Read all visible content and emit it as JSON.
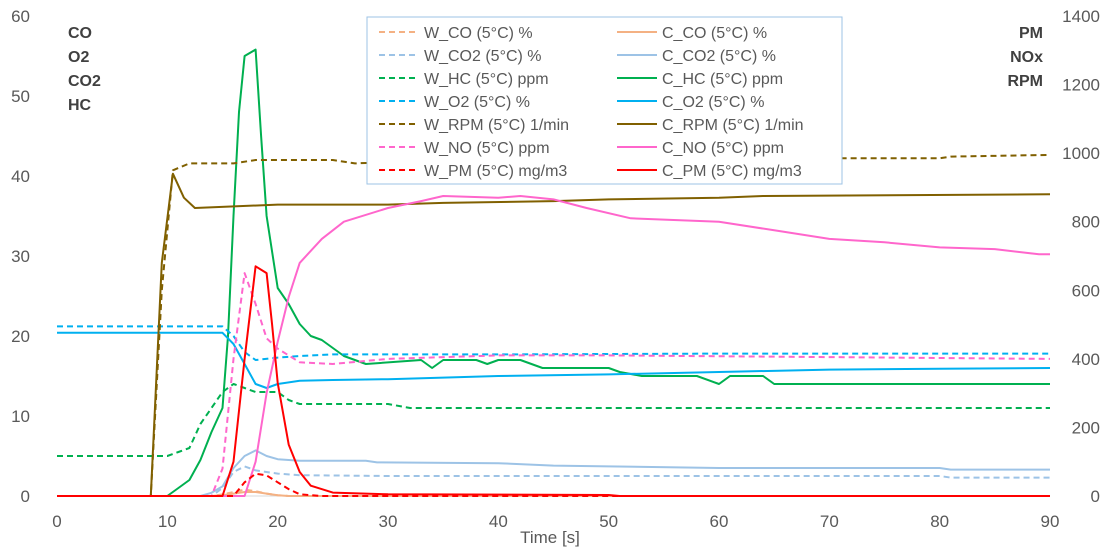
{
  "chart_data": {
    "type": "line",
    "xlabel": "Time [s]",
    "xlim": [
      0,
      90
    ],
    "xticks": [
      0,
      10,
      20,
      30,
      40,
      50,
      60,
      70,
      80,
      90
    ],
    "y_left": {
      "ylim": [
        0,
        60
      ],
      "ticks": [
        0,
        10,
        20,
        30,
        40,
        50,
        60
      ],
      "labels": [
        "CO",
        "O2",
        "CO2",
        "HC"
      ]
    },
    "y_right": {
      "ylim": [
        0,
        1400
      ],
      "ticks": [
        0,
        200,
        400,
        600,
        800,
        1000,
        1200,
        1400
      ],
      "labels": [
        "PM",
        "NOx",
        "RPM"
      ]
    },
    "grid": false,
    "legend": "top-center",
    "series": [
      {
        "name": "W_CO (5°C) %",
        "color": "#F4B183",
        "dash": true,
        "axis": "left",
        "points": [
          [
            0,
            0
          ],
          [
            14,
            0
          ],
          [
            15,
            0.2
          ],
          [
            16,
            0.5
          ],
          [
            17,
            0.8
          ],
          [
            18,
            0.6
          ],
          [
            19,
            0.3
          ],
          [
            20,
            0.1
          ],
          [
            21,
            0
          ],
          [
            90,
            0
          ]
        ]
      },
      {
        "name": "C_CO (5°C) %",
        "color": "#F4B183",
        "dash": false,
        "axis": "left",
        "points": [
          [
            0,
            0
          ],
          [
            14,
            0
          ],
          [
            15,
            0.1
          ],
          [
            16,
            0.3
          ],
          [
            17,
            0.5
          ],
          [
            18,
            0.5
          ],
          [
            19,
            0.3
          ],
          [
            20,
            0.1
          ],
          [
            21,
            0
          ],
          [
            90,
            0
          ]
        ]
      },
      {
        "name": "W_CO2 (5°C) %",
        "color": "#9DC3E6",
        "dash": true,
        "axis": "left",
        "points": [
          [
            0,
            0
          ],
          [
            14,
            0
          ],
          [
            15,
            1
          ],
          [
            16,
            3
          ],
          [
            17,
            3.7
          ],
          [
            18,
            3.2
          ],
          [
            20,
            2.8
          ],
          [
            22,
            2.6
          ],
          [
            30,
            2.5
          ],
          [
            80,
            2.5
          ],
          [
            81,
            2.3
          ],
          [
            90,
            2.3
          ]
        ]
      },
      {
        "name": "C_CO2 (5°C) %",
        "color": "#9DC3E6",
        "dash": false,
        "axis": "left",
        "points": [
          [
            0,
            0
          ],
          [
            13,
            0
          ],
          [
            14,
            0.4
          ],
          [
            15,
            1.2
          ],
          [
            16,
            3.5
          ],
          [
            17,
            5
          ],
          [
            18,
            5.7
          ],
          [
            19,
            5
          ],
          [
            20,
            4.6
          ],
          [
            22,
            4.4
          ],
          [
            28,
            4.4
          ],
          [
            29,
            4.2
          ],
          [
            40,
            4.1
          ],
          [
            45,
            3.8
          ],
          [
            60,
            3.5
          ],
          [
            80,
            3.5
          ],
          [
            81,
            3.3
          ],
          [
            90,
            3.3
          ]
        ]
      },
      {
        "name": "W_HC (5°C) ppm",
        "color": "#00B050",
        "dash": true,
        "axis": "left",
        "points": [
          [
            0,
            5
          ],
          [
            10,
            5
          ],
          [
            11,
            5.5
          ],
          [
            12,
            6
          ],
          [
            13,
            9
          ],
          [
            14,
            11
          ],
          [
            15,
            13
          ],
          [
            16,
            14
          ],
          [
            17,
            13.5
          ],
          [
            18,
            13
          ],
          [
            20,
            13
          ],
          [
            21,
            12
          ],
          [
            22,
            11.5
          ],
          [
            30,
            11.5
          ],
          [
            32,
            11
          ],
          [
            90,
            11
          ]
        ]
      },
      {
        "name": "C_HC (5°C) ppm",
        "color": "#00B050",
        "dash": false,
        "axis": "left",
        "points": [
          [
            0,
            0
          ],
          [
            10,
            0
          ],
          [
            11,
            1
          ],
          [
            12,
            2
          ],
          [
            13,
            4.5
          ],
          [
            14,
            8
          ],
          [
            15,
            11
          ],
          [
            15.5,
            20
          ],
          [
            16,
            35
          ],
          [
            16.5,
            48
          ],
          [
            17,
            55
          ],
          [
            18,
            55.8
          ],
          [
            18.5,
            45
          ],
          [
            19,
            35
          ],
          [
            20,
            26
          ],
          [
            21,
            24
          ],
          [
            22,
            21.5
          ],
          [
            23,
            20
          ],
          [
            24,
            19.5
          ],
          [
            26,
            17.5
          ],
          [
            28,
            16.5
          ],
          [
            33,
            17
          ],
          [
            34,
            16
          ],
          [
            35,
            17
          ],
          [
            38,
            17
          ],
          [
            39,
            16.5
          ],
          [
            40,
            17
          ],
          [
            42,
            17
          ],
          [
            44,
            16
          ],
          [
            50,
            16
          ],
          [
            51,
            15.5
          ],
          [
            53,
            15
          ],
          [
            58,
            15
          ],
          [
            60,
            14
          ],
          [
            61,
            15
          ],
          [
            64,
            15
          ],
          [
            65,
            14
          ],
          [
            90,
            14
          ]
        ]
      },
      {
        "name": "W_O2 (5°C) %",
        "color": "#00B0F0",
        "dash": true,
        "axis": "left",
        "points": [
          [
            0,
            21.2
          ],
          [
            15,
            21.2
          ],
          [
            16,
            20
          ],
          [
            17,
            18
          ],
          [
            18,
            17
          ],
          [
            20,
            17.3
          ],
          [
            22,
            17.5
          ],
          [
            25,
            17.7
          ],
          [
            40,
            17.7
          ],
          [
            60,
            17.8
          ],
          [
            90,
            17.8
          ]
        ]
      },
      {
        "name": "C_O2 (5°C) %",
        "color": "#00B0F0",
        "dash": false,
        "axis": "left",
        "points": [
          [
            0,
            20.4
          ],
          [
            15,
            20.4
          ],
          [
            16,
            19
          ],
          [
            17,
            16.5
          ],
          [
            18,
            14
          ],
          [
            19,
            13.5
          ],
          [
            20,
            14
          ],
          [
            22,
            14.4
          ],
          [
            25,
            14.5
          ],
          [
            30,
            14.6
          ],
          [
            40,
            15
          ],
          [
            50,
            15.2
          ],
          [
            60,
            15.5
          ],
          [
            70,
            15.8
          ],
          [
            80,
            15.9
          ],
          [
            90,
            16
          ]
        ]
      },
      {
        "name": "W_RPM (5°C) 1/min",
        "color": "#806000",
        "dash": true,
        "axis": "right",
        "points": [
          [
            0,
            0
          ],
          [
            8.5,
            0
          ],
          [
            9.5,
            600
          ],
          [
            10.5,
            950
          ],
          [
            12,
            970
          ],
          [
            16,
            970
          ],
          [
            18,
            980
          ],
          [
            25,
            980
          ],
          [
            27,
            970
          ],
          [
            35,
            980
          ],
          [
            70,
            985
          ],
          [
            80,
            985
          ],
          [
            81,
            990
          ],
          [
            90,
            995
          ]
        ]
      },
      {
        "name": "C_RPM (5°C) 1/min",
        "color": "#806000",
        "dash": false,
        "axis": "right",
        "points": [
          [
            0,
            0
          ],
          [
            8.5,
            0
          ],
          [
            9.5,
            680
          ],
          [
            10.5,
            940
          ],
          [
            11.5,
            870
          ],
          [
            12.5,
            840
          ],
          [
            20,
            850
          ],
          [
            30,
            850
          ],
          [
            35,
            855
          ],
          [
            45,
            860
          ],
          [
            50,
            865
          ],
          [
            60,
            870
          ],
          [
            64,
            875
          ],
          [
            90,
            880
          ]
        ]
      },
      {
        "name": "W_NO (5°C) ppm",
        "color": "#FF66CC",
        "dash": true,
        "axis": "right",
        "points": [
          [
            0,
            0
          ],
          [
            14,
            0
          ],
          [
            15,
            80
          ],
          [
            16,
            400
          ],
          [
            17,
            650
          ],
          [
            18,
            560
          ],
          [
            19,
            460
          ],
          [
            20,
            430
          ],
          [
            22,
            390
          ],
          [
            25,
            385
          ],
          [
            30,
            400
          ],
          [
            40,
            410
          ],
          [
            50,
            410
          ],
          [
            70,
            405
          ],
          [
            90,
            400
          ]
        ]
      },
      {
        "name": "C_NO (5°C) ppm",
        "color": "#FF66CC",
        "dash": false,
        "axis": "right",
        "points": [
          [
            0,
            0
          ],
          [
            17,
            0
          ],
          [
            18,
            100
          ],
          [
            19,
            300
          ],
          [
            20,
            450
          ],
          [
            21,
            580
          ],
          [
            22,
            680
          ],
          [
            24,
            750
          ],
          [
            26,
            800
          ],
          [
            30,
            840
          ],
          [
            33,
            860
          ],
          [
            35,
            875
          ],
          [
            40,
            870
          ],
          [
            42,
            875
          ],
          [
            45,
            865
          ],
          [
            48,
            840
          ],
          [
            52,
            810
          ],
          [
            60,
            800
          ],
          [
            65,
            775
          ],
          [
            70,
            750
          ],
          [
            75,
            740
          ],
          [
            80,
            725
          ],
          [
            85,
            720
          ],
          [
            89,
            705
          ],
          [
            90,
            705
          ]
        ]
      },
      {
        "name": "W_PM (5°C) mg/m3",
        "color": "#FF0000",
        "dash": true,
        "axis": "right",
        "points": [
          [
            0,
            0
          ],
          [
            16,
            0
          ],
          [
            17,
            40
          ],
          [
            18,
            65
          ],
          [
            19,
            60
          ],
          [
            20,
            40
          ],
          [
            21,
            20
          ],
          [
            22,
            5
          ],
          [
            24,
            0
          ],
          [
            90,
            0
          ]
        ]
      },
      {
        "name": "C_PM (5°C) mg/m3",
        "color": "#FF0000",
        "dash": false,
        "axis": "right",
        "points": [
          [
            0,
            0
          ],
          [
            15,
            0
          ],
          [
            16,
            100
          ],
          [
            17,
            400
          ],
          [
            18,
            670
          ],
          [
            19,
            650
          ],
          [
            19.5,
            500
          ],
          [
            20,
            330
          ],
          [
            21,
            150
          ],
          [
            22,
            70
          ],
          [
            23,
            30
          ],
          [
            25,
            10
          ],
          [
            30,
            5
          ],
          [
            50,
            3
          ],
          [
            51,
            0
          ],
          [
            90,
            0
          ]
        ]
      }
    ]
  }
}
